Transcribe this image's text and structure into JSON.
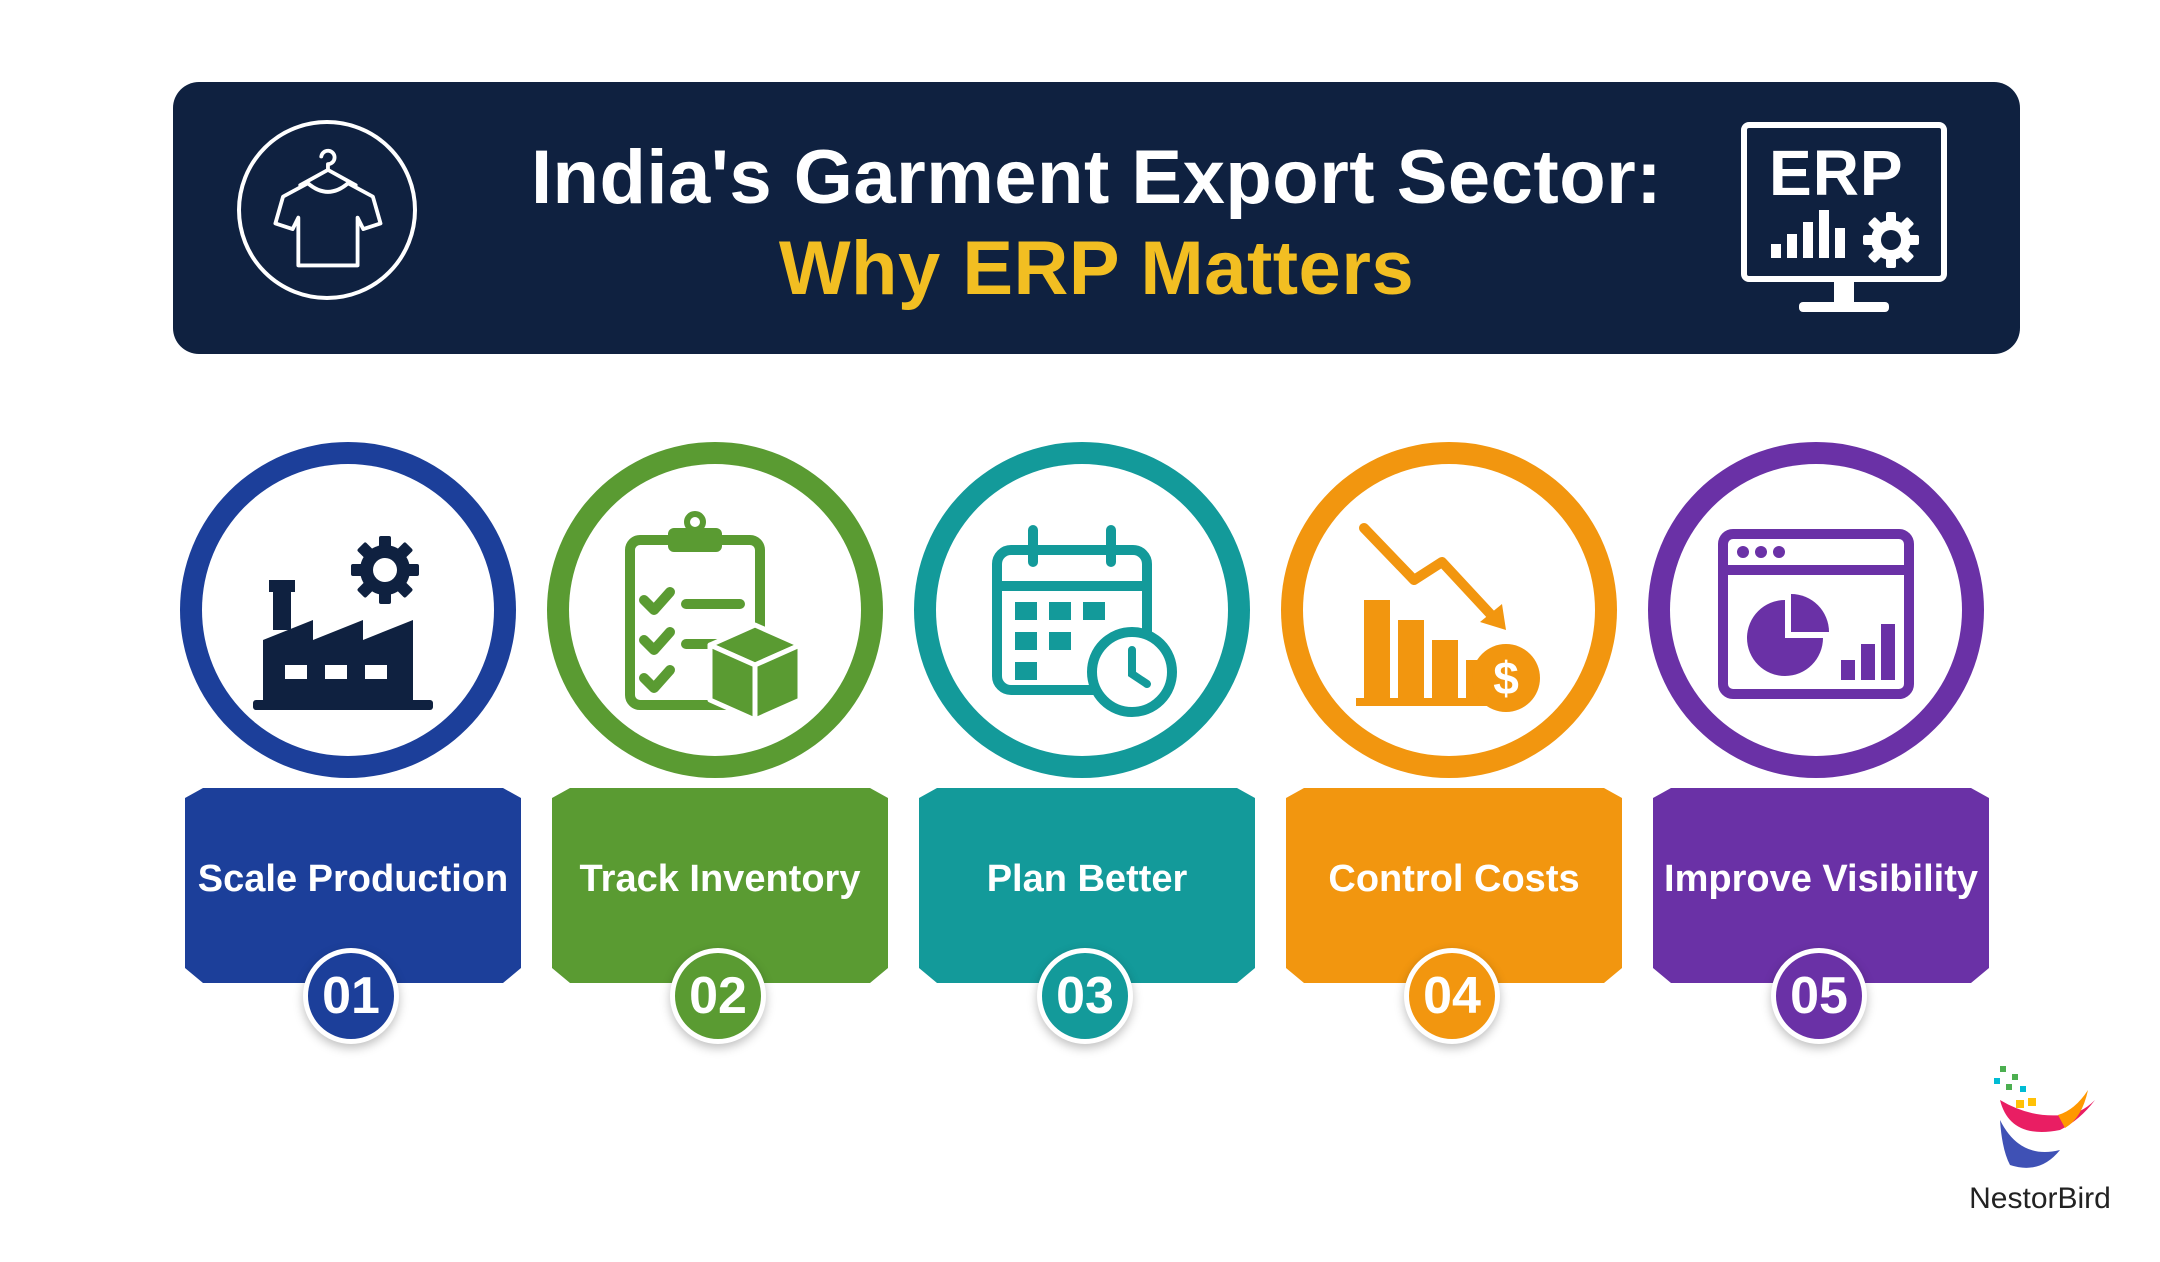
{
  "title": {
    "line1": "India's Garment Export Sector:",
    "line2": "Why ERP Matters"
  },
  "erp_badge": {
    "label": "ERP"
  },
  "colors": {
    "banner": "#0f2140",
    "title_accent": "#f2be22",
    "blue": "#1c3f9a",
    "green": "#5a9b32",
    "teal": "#139a9a",
    "orange": "#f2960f",
    "purple": "#6a31a6"
  },
  "cards": [
    {
      "label": "Scale Production",
      "number": "01",
      "icon": "factory-gear-icon"
    },
    {
      "label": "Track Inventory",
      "number": "02",
      "icon": "clipboard-box-icon"
    },
    {
      "label": "Plan Better",
      "number": "03",
      "icon": "calendar-clock-icon"
    },
    {
      "label": "Control Costs",
      "number": "04",
      "icon": "falling-cost-icon"
    },
    {
      "label": "Improve Visibility",
      "number": "05",
      "icon": "dashboard-chart-icon"
    }
  ],
  "logo": {
    "text": "NestorBird"
  }
}
